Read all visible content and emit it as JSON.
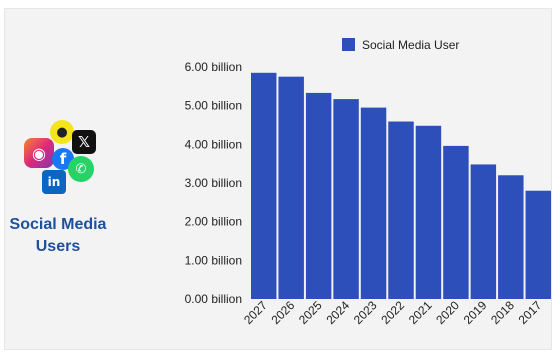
{
  "side_panel": {
    "title": "Social Media Users",
    "icons": [
      "snapchat-icon",
      "x-icon",
      "instagram-icon",
      "facebook-icon",
      "whatsapp-icon",
      "linkedin-icon"
    ]
  },
  "chart_data": {
    "type": "bar",
    "title": "",
    "xlabel": "",
    "ylabel": "",
    "categories": [
      "2027",
      "2026",
      "2025",
      "2024",
      "2023",
      "2022",
      "2021",
      "2020",
      "2019",
      "2018",
      "2017"
    ],
    "series": [
      {
        "name": "Social Media User",
        "values": [
          5.85,
          5.75,
          5.33,
          5.17,
          4.95,
          4.59,
          4.48,
          3.96,
          3.48,
          3.2,
          2.8
        ]
      }
    ],
    "y_ticks": [
      "0.00 billion",
      "1.00 billion",
      "2.00 billion",
      "3.00 billion",
      "4.00 billion",
      "5.00 billion",
      "6.00 billion"
    ],
    "ylim": [
      0,
      6
    ],
    "grid": false,
    "legend": "top",
    "bar_color": "#2d4fb9"
  }
}
